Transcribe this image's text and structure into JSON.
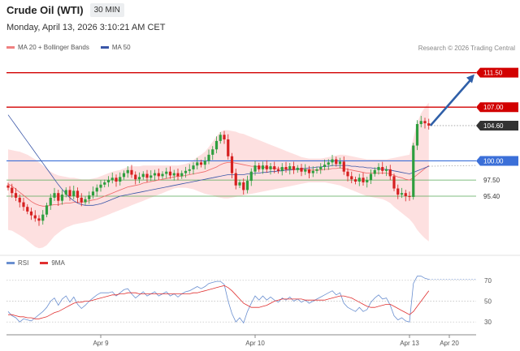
{
  "header": {
    "title": "Crude Oil (WTI)",
    "interval": "30 MIN"
  },
  "date_line": "Monday, April 13, 2026 3:10:21 AM CET",
  "credit": "Research © 2026 Trading Central",
  "legend_main": [
    {
      "label": "MA 20 + Bollinger Bands",
      "color": "#f08080"
    },
    {
      "label": "MA 50",
      "color": "#3a56a8"
    }
  ],
  "legend_rsi": [
    {
      "label": "RSI",
      "color": "#6a8fd0"
    },
    {
      "label": "9MA",
      "color": "#e03030"
    }
  ],
  "colors": {
    "up": "#2e9e3e",
    "down": "#d62020",
    "band": "#fde0e0",
    "resistance": "#d20000",
    "support_blue": "#3b6fd8",
    "support_green": "#55a855",
    "arrow": "#2f5fa8",
    "last_price_bg": "#333333"
  },
  "chart_data": [
    {
      "type": "candlestick",
      "x_ticks": [
        "Apr 9",
        "Apr 10",
        "Apr 13",
        "Apr 20"
      ],
      "y_range": [
        88,
        114
      ],
      "levels": [
        {
          "value": 111.5,
          "label": "111.50",
          "kind": "resistance"
        },
        {
          "value": 107.0,
          "label": "107.00",
          "kind": "resistance"
        },
        {
          "value": 104.6,
          "label": "104.60",
          "kind": "last_price"
        },
        {
          "value": 100.0,
          "label": "100.00",
          "kind": "support_blue"
        },
        {
          "value": 97.5,
          "label": "97.50",
          "kind": "support_green"
        },
        {
          "value": 95.4,
          "label": "95.40",
          "kind": "support_green"
        }
      ],
      "forecast_arrow": {
        "from": 104.6,
        "to": 111.5
      },
      "closes": [
        96.5,
        95.8,
        95.2,
        94.6,
        94.0,
        93.4,
        92.9,
        92.5,
        92.2,
        93.0,
        94.2,
        95.2,
        95.8,
        94.8,
        95.6,
        96.2,
        95.4,
        96.1,
        95.2,
        94.6,
        95.0,
        95.5,
        96.0,
        96.5,
        96.9,
        97.2,
        97.5,
        97.8,
        97.3,
        97.9,
        98.4,
        98.8,
        98.2,
        97.6,
        97.9,
        98.3,
        97.8,
        98.1,
        98.4,
        98.0,
        98.3,
        98.6,
        98.1,
        98.4,
        98.0,
        98.4,
        98.7,
        98.9,
        99.4,
        99.8,
        99.5,
        100.0,
        100.8,
        101.5,
        102.6,
        103.4,
        102.8,
        100.6,
        98.4,
        96.8,
        97.2,
        96.2,
        97.4,
        98.6,
        99.4,
        98.9,
        99.4,
        98.9,
        99.3,
        98.9,
        98.7,
        99.2,
        98.9,
        99.3,
        98.8,
        99.1,
        98.6,
        98.9,
        98.4,
        98.7,
        98.9,
        99.2,
        99.5,
        99.8,
        100.2,
        99.6,
        99.9,
        98.6,
        98.0,
        97.6,
        97.3,
        97.8,
        97.2,
        97.5,
        98.3,
        98.8,
        99.2,
        98.7,
        98.9,
        98.0,
        96.4,
        95.6,
        95.8,
        95.4,
        95.3,
        102.0,
        104.8,
        105.2,
        104.9,
        104.6
      ],
      "ma20": [
        97.0,
        96.7,
        96.3,
        95.9,
        95.5,
        95.1,
        94.7,
        94.4,
        94.2,
        94.1,
        94.1,
        94.2,
        94.3,
        94.3,
        94.4,
        94.5,
        94.5,
        94.6,
        94.6,
        94.6,
        94.7,
        94.8,
        94.9,
        95.0,
        95.2,
        95.4,
        95.6,
        95.8,
        96.0,
        96.2,
        96.4,
        96.6,
        96.7,
        96.8,
        96.9,
        97.1,
        97.2,
        97.3,
        97.4,
        97.5,
        97.6,
        97.7,
        97.8,
        97.9,
        98.0,
        98.0,
        98.1,
        98.2,
        98.3,
        98.4,
        98.5,
        98.6,
        98.8,
        99.0,
        99.2,
        99.5,
        99.7,
        99.8,
        99.8,
        99.7,
        99.6,
        99.5,
        99.4,
        99.3,
        99.3,
        99.2,
        99.2,
        99.1,
        99.1,
        99.0,
        99.0,
        99.0,
        98.9,
        98.9,
        98.9,
        98.9,
        98.9,
        98.9,
        98.8,
        98.8,
        98.8,
        98.8,
        98.9,
        98.9,
        99.0,
        99.0,
        99.1,
        99.0,
        98.9,
        98.8,
        98.7,
        98.6,
        98.5,
        98.4,
        98.4,
        98.4,
        98.4,
        98.4,
        98.4,
        98.3,
        98.1,
        97.9,
        97.8,
        97.6,
        97.5,
        97.8,
        98.2,
        98.6,
        99.0,
        99.4
      ],
      "bb_upper": [
        101.5,
        101.4,
        101.3,
        101.2,
        101.0,
        100.8,
        100.5,
        100.2,
        99.8,
        99.4,
        99.0,
        98.6,
        98.3,
        98.1,
        98.0,
        97.9,
        97.8,
        97.8,
        97.7,
        97.6,
        97.6,
        97.6,
        97.7,
        97.8,
        98.0,
        98.2,
        98.4,
        98.6,
        98.7,
        98.8,
        99.0,
        99.2,
        99.3,
        99.3,
        99.3,
        99.4,
        99.4,
        99.4,
        99.4,
        99.4,
        99.4,
        99.4,
        99.4,
        99.4,
        99.4,
        99.5,
        99.6,
        99.8,
        100.1,
        100.5,
        100.8,
        101.2,
        101.8,
        102.5,
        103.2,
        103.8,
        104.0,
        104.0,
        103.9,
        103.8,
        103.6,
        103.5,
        103.3,
        103.1,
        102.9,
        102.7,
        102.5,
        102.3,
        102.1,
        101.9,
        101.7,
        101.5,
        101.3,
        101.1,
        100.9,
        100.7,
        100.5,
        100.4,
        100.3,
        100.3,
        100.3,
        100.3,
        100.4,
        100.5,
        100.6,
        100.7,
        100.8,
        100.8,
        100.7,
        100.6,
        100.5,
        100.4,
        100.3,
        100.2,
        100.2,
        100.2,
        100.2,
        100.2,
        100.2,
        100.3,
        100.4,
        100.5,
        100.6,
        100.7,
        100.8,
        103.0,
        105.0,
        106.2,
        107.0,
        107.6
      ],
      "bb_lower": [
        91.0,
        90.9,
        90.6,
        90.3,
        90.0,
        89.6,
        89.2,
        88.8,
        88.6,
        88.7,
        89.0,
        89.6,
        90.2,
        90.6,
        91.0,
        91.3,
        91.5,
        91.7,
        91.8,
        91.9,
        92.0,
        92.1,
        92.2,
        92.4,
        92.6,
        92.8,
        93.0,
        93.2,
        93.4,
        93.6,
        93.8,
        94.0,
        94.2,
        94.4,
        94.6,
        94.8,
        95.0,
        95.2,
        95.4,
        95.6,
        95.8,
        96.0,
        96.2,
        96.4,
        96.5,
        96.5,
        96.5,
        96.4,
        96.3,
        96.1,
        95.9,
        95.7,
        95.6,
        95.5,
        95.3,
        95.2,
        95.1,
        95.1,
        95.2,
        95.3,
        95.4,
        95.5,
        95.6,
        95.7,
        95.8,
        95.9,
        96.0,
        96.1,
        96.2,
        96.3,
        96.4,
        96.5,
        96.6,
        96.7,
        96.8,
        96.9,
        97.0,
        97.1,
        97.2,
        97.2,
        97.2,
        97.2,
        97.2,
        97.1,
        97.0,
        96.9,
        96.8,
        96.6,
        96.4,
        96.2,
        96.0,
        95.8,
        95.6,
        95.4,
        95.3,
        95.2,
        95.1,
        95.0,
        94.8,
        94.5,
        94.0,
        93.6,
        93.2,
        92.8,
        92.4,
        91.8,
        91.0,
        90.4,
        89.9,
        89.5
      ],
      "ma50": [
        106.0,
        105.3,
        104.6,
        103.9,
        103.2,
        102.5,
        101.8,
        101.1,
        100.4,
        99.7,
        99.0,
        98.3,
        97.6,
        96.9,
        96.3,
        95.7,
        95.2,
        94.8,
        94.5,
        94.3,
        94.2,
        94.2,
        94.2,
        94.3,
        94.4,
        94.6,
        94.8,
        95.0,
        95.2,
        95.4,
        95.5,
        95.6,
        95.7,
        95.8,
        95.9,
        96.0,
        96.1,
        96.2,
        96.3,
        96.4,
        96.5,
        96.6,
        96.7,
        96.8,
        96.9,
        97.0,
        97.1,
        97.2,
        97.3,
        97.4,
        97.5,
        97.6,
        97.7,
        97.8,
        97.9,
        98.0,
        98.1,
        98.2,
        98.2,
        98.2,
        98.2,
        98.2,
        98.3,
        98.3,
        98.4,
        98.4,
        98.5,
        98.5,
        98.6,
        98.6,
        98.7,
        98.7,
        98.8,
        98.8,
        98.9,
        98.9,
        99.0,
        99.0,
        99.1,
        99.1,
        99.2,
        99.2,
        99.3,
        99.3,
        99.4,
        99.4,
        99.4,
        99.4,
        99.4,
        99.3,
        99.3,
        99.2,
        99.2,
        99.1,
        99.1,
        99.0,
        99.0,
        98.9,
        98.9,
        98.8,
        98.7,
        98.6,
        98.5,
        98.4,
        98.3,
        98.5,
        98.7,
        98.9,
        99.1,
        99.3
      ]
    },
    {
      "type": "line",
      "y_ticks": [
        70,
        50,
        30
      ],
      "y_range": [
        20,
        80
      ],
      "rsi": [
        40,
        36,
        34,
        30,
        33,
        32,
        31,
        34,
        37,
        40,
        44,
        50,
        53,
        46,
        52,
        55,
        49,
        54,
        47,
        43,
        46,
        50,
        53,
        56,
        58,
        58,
        58,
        59,
        55,
        58,
        61,
        62,
        57,
        53,
        56,
        59,
        55,
        57,
        59,
        55,
        57,
        59,
        55,
        57,
        54,
        57,
        59,
        60,
        62,
        64,
        62,
        64,
        67,
        68,
        69,
        69,
        66,
        50,
        38,
        30,
        34,
        29,
        40,
        48,
        55,
        51,
        55,
        51,
        54,
        51,
        49,
        53,
        51,
        54,
        50,
        52,
        49,
        51,
        48,
        50,
        52,
        54,
        56,
        58,
        60,
        56,
        58,
        48,
        44,
        42,
        40,
        44,
        40,
        42,
        49,
        53,
        56,
        52,
        53,
        46,
        36,
        32,
        34,
        31,
        30,
        67,
        74,
        74,
        72,
        71
      ],
      "rsi_ma9": [
        37,
        37,
        36,
        35,
        35,
        34,
        34,
        33,
        33,
        34,
        35,
        37,
        39,
        40,
        42,
        44,
        46,
        48,
        49,
        49,
        50,
        50,
        51,
        52,
        53,
        54,
        55,
        56,
        56,
        57,
        57,
        58,
        58,
        58,
        57,
        57,
        57,
        57,
        57,
        57,
        57,
        57,
        57,
        57,
        57,
        57,
        57,
        57,
        58,
        58,
        59,
        60,
        61,
        62,
        63,
        64,
        65,
        63,
        60,
        56,
        52,
        48,
        46,
        44,
        44,
        44,
        45,
        46,
        48,
        50,
        51,
        52,
        52,
        52,
        52,
        52,
        52,
        51,
        51,
        51,
        51,
        51,
        51,
        52,
        53,
        54,
        55,
        55,
        54,
        53,
        51,
        49,
        47,
        45,
        44,
        44,
        45,
        46,
        47,
        47,
        45,
        43,
        41,
        39,
        37,
        40,
        45,
        50,
        55,
        60
      ]
    }
  ]
}
